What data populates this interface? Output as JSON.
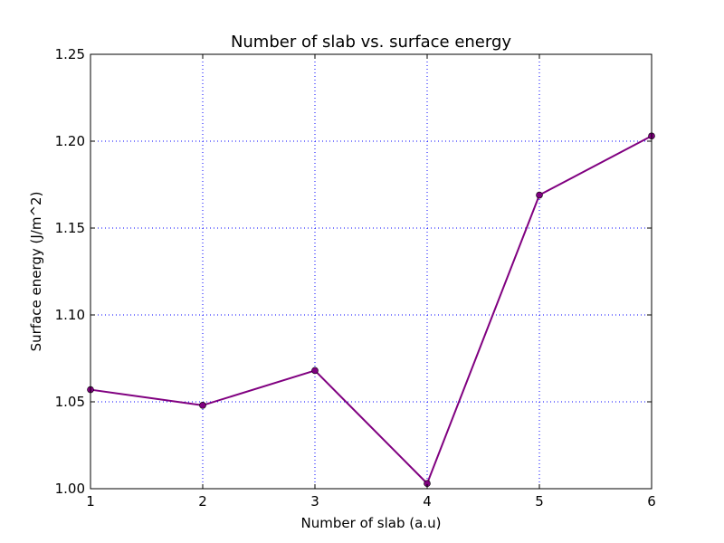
{
  "chart_data": {
    "type": "line",
    "title": "Number of slab vs. surface energy",
    "xlabel": "Number of slab (a.u)",
    "ylabel": "Surface energy (J/m^2)",
    "xlim": [
      1,
      6
    ],
    "ylim": [
      1.0,
      1.25
    ],
    "grid": true,
    "x_ticks": [
      "1",
      "2",
      "3",
      "4",
      "5",
      "6"
    ],
    "y_ticks": [
      "1.00",
      "1.05",
      "1.10",
      "1.15",
      "1.20",
      "1.25"
    ],
    "series": [
      {
        "x": [
          1,
          2,
          3,
          4,
          5,
          6
        ],
        "y": [
          1.057,
          1.048,
          1.068,
          1.003,
          1.169,
          1.203
        ],
        "color": "#800080",
        "marker": "circle"
      }
    ]
  },
  "colors": {
    "line": "#800080",
    "grid": "#0000ff",
    "axes": "#000000"
  }
}
